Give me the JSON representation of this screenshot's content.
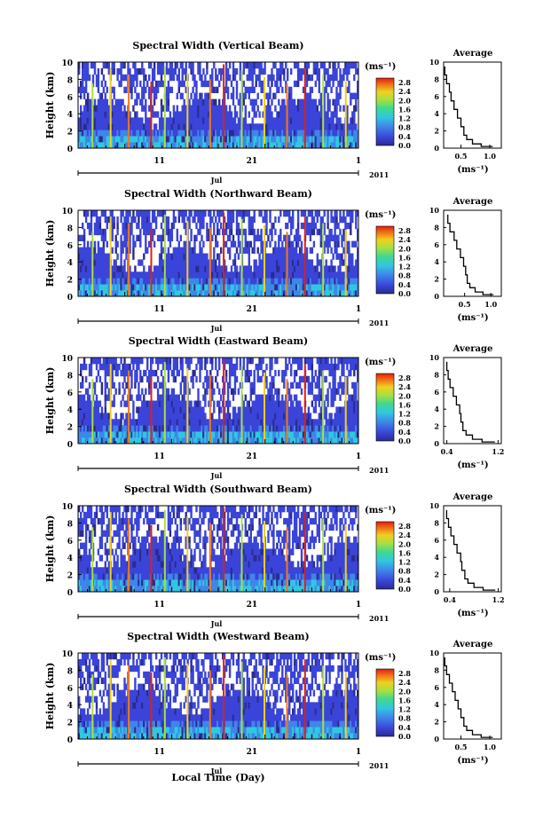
{
  "figure": {
    "xlabel": "Local Time (Day)",
    "month_label": "Jul",
    "year_label": "2011",
    "x_ticks": [
      "11",
      "21",
      "1"
    ]
  },
  "chart_data": [
    {
      "type": "heatmap",
      "title": "Spectral Width (Vertical Beam)",
      "ylabel": "Height (km)",
      "yticks": [
        "0",
        "2",
        "4",
        "6",
        "8",
        "10"
      ],
      "ylim": [
        0,
        10
      ],
      "colorbar": {
        "unit": "(ms⁻¹)",
        "ticks": [
          "0.0",
          "0.4",
          "0.8",
          "1.2",
          "1.6",
          "2.0",
          "2.4",
          "2.8"
        ],
        "range": [
          0,
          3.0
        ]
      },
      "average": {
        "title": "Average",
        "xlabel": "(ms⁻¹)",
        "xticks": [
          "0.5",
          "1.0"
        ],
        "xlim": [
          0.2,
          1.2
        ],
        "profile": [
          [
            1.05,
            0.2
          ],
          [
            0.85,
            0.5
          ],
          [
            0.7,
            1.0
          ],
          [
            0.6,
            1.5
          ],
          [
            0.55,
            2.5
          ],
          [
            0.5,
            3.5
          ],
          [
            0.44,
            4.5
          ],
          [
            0.38,
            5.5
          ],
          [
            0.33,
            6.5
          ],
          [
            0.3,
            7.5
          ],
          [
            0.25,
            8.5
          ],
          [
            0.22,
            9.5
          ]
        ]
      }
    },
    {
      "type": "heatmap",
      "title": "Spectral Width (Northward Beam)",
      "ylabel": "Height (km)",
      "yticks": [
        "0",
        "2",
        "4",
        "6",
        "8",
        "10"
      ],
      "ylim": [
        0,
        10
      ],
      "colorbar": {
        "unit": "(ms⁻¹)",
        "ticks": [
          "0.0",
          "0.4",
          "0.8",
          "1.2",
          "1.6",
          "2.0",
          "2.4",
          "2.8"
        ],
        "range": [
          0,
          3.0
        ]
      },
      "average": {
        "title": "Average",
        "xlabel": "(ms⁻¹)",
        "xticks": [
          "0.5",
          "1.0"
        ],
        "xlim": [
          0.1,
          1.2
        ],
        "profile": [
          [
            1.05,
            0.2
          ],
          [
            0.85,
            0.5
          ],
          [
            0.7,
            1.0
          ],
          [
            0.6,
            1.5
          ],
          [
            0.55,
            2.5
          ],
          [
            0.52,
            3.5
          ],
          [
            0.48,
            4.5
          ],
          [
            0.42,
            5.5
          ],
          [
            0.35,
            6.5
          ],
          [
            0.3,
            7.5
          ],
          [
            0.22,
            8.5
          ],
          [
            0.18,
            9.5
          ]
        ]
      }
    },
    {
      "type": "heatmap",
      "title": "Spectral Width (Eastward Beam)",
      "ylabel": "Height (km)",
      "yticks": [
        "0",
        "2",
        "4",
        "6",
        "8",
        "10"
      ],
      "ylim": [
        0,
        10
      ],
      "colorbar": {
        "unit": "(ms⁻¹)",
        "ticks": [
          "0.0",
          "0.4",
          "0.8",
          "1.2",
          "1.6",
          "2.0",
          "2.4",
          "2.8"
        ],
        "range": [
          0,
          3.0
        ]
      },
      "average": {
        "title": "Average",
        "xlabel": "(ms⁻¹)",
        "xticks": [
          "0.4",
          "1.2"
        ],
        "xlim": [
          0.35,
          1.25
        ],
        "profile": [
          [
            1.15,
            0.2
          ],
          [
            0.95,
            0.5
          ],
          [
            0.8,
            1.0
          ],
          [
            0.7,
            1.5
          ],
          [
            0.65,
            2.5
          ],
          [
            0.62,
            3.5
          ],
          [
            0.6,
            4.5
          ],
          [
            0.55,
            5.5
          ],
          [
            0.5,
            6.5
          ],
          [
            0.45,
            7.5
          ],
          [
            0.42,
            8.5
          ],
          [
            0.4,
            9.5
          ]
        ]
      }
    },
    {
      "type": "heatmap",
      "title": "Spectral Width (Southward Beam)",
      "ylabel": "Height (km)",
      "yticks": [
        "0",
        "2",
        "4",
        "6",
        "8",
        "10"
      ],
      "ylim": [
        0,
        10
      ],
      "colorbar": {
        "unit": "(ms⁻¹)",
        "ticks": [
          "0.0",
          "0.4",
          "0.8",
          "1.2",
          "1.6",
          "2.0",
          "2.4",
          "2.8"
        ],
        "range": [
          0,
          3.0
        ]
      },
      "average": {
        "title": "Average",
        "xlabel": "(ms⁻¹)",
        "xticks": [
          "0.4",
          "1.2"
        ],
        "xlim": [
          0.3,
          1.25
        ],
        "profile": [
          [
            1.15,
            0.2
          ],
          [
            0.95,
            0.5
          ],
          [
            0.8,
            1.0
          ],
          [
            0.7,
            1.5
          ],
          [
            0.65,
            2.5
          ],
          [
            0.6,
            3.5
          ],
          [
            0.58,
            4.5
          ],
          [
            0.52,
            5.5
          ],
          [
            0.47,
            6.5
          ],
          [
            0.42,
            7.5
          ],
          [
            0.38,
            8.5
          ],
          [
            0.35,
            9.5
          ]
        ]
      }
    },
    {
      "type": "heatmap",
      "title": "Spectral Width (Westward Beam)",
      "ylabel": "Height (km)",
      "yticks": [
        "0",
        "2",
        "4",
        "6",
        "8",
        "10"
      ],
      "ylim": [
        0,
        10
      ],
      "colorbar": {
        "unit": "(ms⁻¹)",
        "ticks": [
          "0.0",
          "0.4",
          "0.8",
          "1.2",
          "1.6",
          "2.0",
          "2.4",
          "2.8"
        ],
        "range": [
          0,
          3.0
        ]
      },
      "average": {
        "title": "Average",
        "xlabel": "(ms⁻¹)",
        "xticks": [
          "0.5",
          "1.0"
        ],
        "xlim": [
          0.2,
          1.2
        ],
        "profile": [
          [
            1.05,
            0.2
          ],
          [
            0.85,
            0.5
          ],
          [
            0.7,
            1.0
          ],
          [
            0.6,
            1.5
          ],
          [
            0.55,
            2.5
          ],
          [
            0.5,
            3.5
          ],
          [
            0.45,
            4.5
          ],
          [
            0.4,
            5.5
          ],
          [
            0.35,
            6.5
          ],
          [
            0.3,
            7.5
          ],
          [
            0.25,
            8.5
          ],
          [
            0.22,
            9.5
          ]
        ]
      }
    }
  ]
}
